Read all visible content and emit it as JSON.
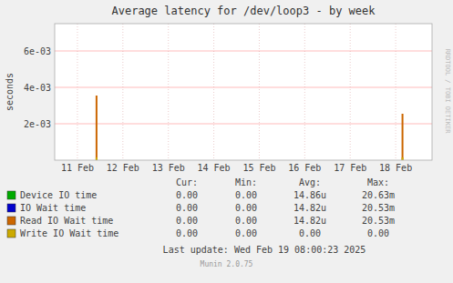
{
  "chart_data": {
    "type": "bar",
    "title": "Average latency for /dev/loop3 - by week",
    "y_label": "seconds",
    "x": [
      0.42,
      7.15
    ],
    "xlim": [
      -0.5,
      7.8
    ],
    "xticks": [
      {
        "value": 0,
        "label": "11 Feb"
      },
      {
        "value": 1,
        "label": "12 Feb"
      },
      {
        "value": 2,
        "label": "13 Feb"
      },
      {
        "value": 3,
        "label": "14 Feb"
      },
      {
        "value": 4,
        "label": "15 Feb"
      },
      {
        "value": 5,
        "label": "16 Feb"
      },
      {
        "value": 6,
        "label": "17 Feb"
      },
      {
        "value": 7,
        "label": "18 Feb"
      }
    ],
    "ylim": [
      0,
      0.0075
    ],
    "yticks": [
      {
        "value": 0.002,
        "label": "2e-03"
      },
      {
        "value": 0.004,
        "label": "4e-03"
      },
      {
        "value": 0.006,
        "label": "6e-03"
      }
    ],
    "grid": true,
    "stacked": false,
    "series": [
      {
        "name": "Device IO time",
        "color": "#00aa00",
        "values": [
          null,
          null
        ],
        "stats": [
          "0.00",
          "0.00",
          "14.86u",
          "20.63m"
        ]
      },
      {
        "name": "IO Wait time",
        "color": "#0000cc",
        "values": [
          null,
          null
        ],
        "stats": [
          "0.00",
          "0.00",
          "14.82u",
          "20.53m"
        ]
      },
      {
        "name": "Read IO Wait time",
        "color": "#cc6600",
        "values": [
          0.00355,
          0.00255
        ],
        "stats": [
          "0.00",
          "0.00",
          "14.82u",
          "20.53m"
        ]
      },
      {
        "name": "Write IO Wait time",
        "color": "#ccaa00",
        "values": [
          0.00015,
          0.00015
        ],
        "stats": [
          "0.00",
          "0.00",
          "0.00",
          "0.00"
        ]
      }
    ],
    "stats_headers": [
      "Cur:",
      "Min:",
      "Avg:",
      "Max:"
    ],
    "last_update": "Last update: Wed Feb 19 08:00:23 2025",
    "version": "Munin 2.0.75",
    "side_text": "RRDTOOL / TOBI OETIKER"
  }
}
